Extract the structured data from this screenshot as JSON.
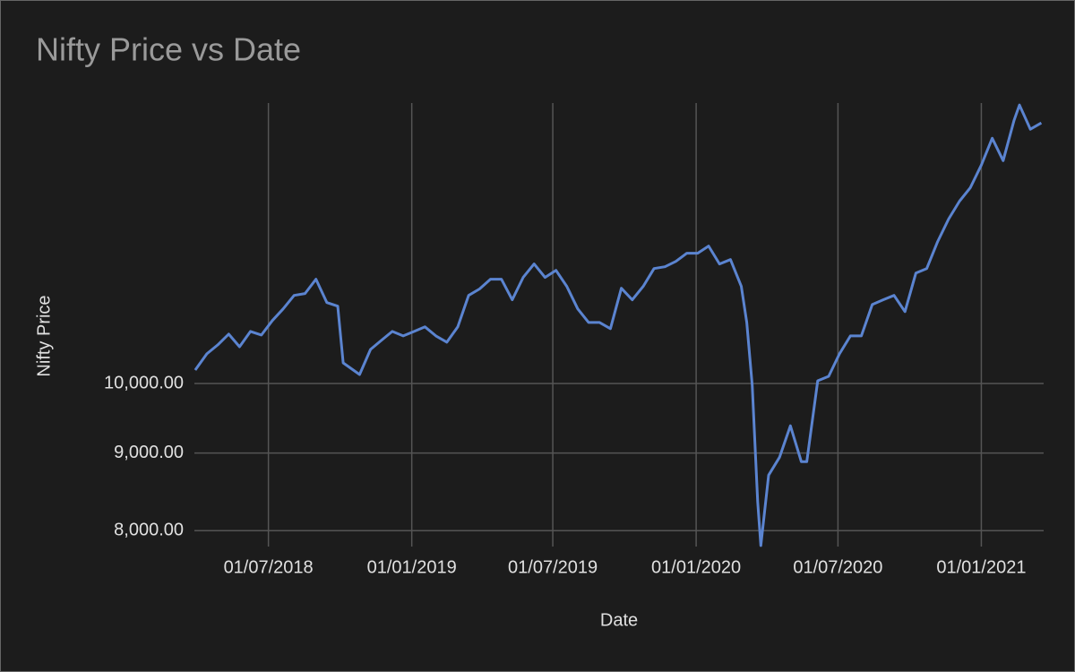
{
  "chart_data": {
    "type": "line",
    "title": "Nifty Price vs Date",
    "x_label": "Date",
    "y_label": "Nifty Price",
    "color": "#5b84d0",
    "log_y": true,
    "grid": true,
    "x": [
      "2018-03-29",
      "2018-04-13",
      "2018-04-27",
      "2018-05-11",
      "2018-05-25",
      "2018-06-08",
      "2018-06-22",
      "2018-07-06",
      "2018-07-20",
      "2018-08-03",
      "2018-08-17",
      "2018-08-31",
      "2018-09-14",
      "2018-09-28",
      "2018-10-05",
      "2018-10-26",
      "2018-11-09",
      "2018-11-23",
      "2018-12-07",
      "2018-12-21",
      "2019-01-04",
      "2019-01-18",
      "2019-02-01",
      "2019-02-15",
      "2019-03-01",
      "2019-03-15",
      "2019-03-29",
      "2019-04-12",
      "2019-04-26",
      "2019-05-10",
      "2019-05-24",
      "2019-06-07",
      "2019-06-21",
      "2019-07-05",
      "2019-07-19",
      "2019-08-02",
      "2019-08-16",
      "2019-08-30",
      "2019-09-13",
      "2019-09-27",
      "2019-10-11",
      "2019-10-25",
      "2019-11-08",
      "2019-11-22",
      "2019-12-06",
      "2019-12-20",
      "2020-01-03",
      "2020-01-17",
      "2020-01-31",
      "2020-02-14",
      "2020-02-28",
      "2020-03-06",
      "2020-03-13",
      "2020-03-20",
      "2020-03-24",
      "2020-04-03",
      "2020-04-17",
      "2020-05-01",
      "2020-05-15",
      "2020-05-22",
      "2020-06-05",
      "2020-06-19",
      "2020-07-03",
      "2020-07-17",
      "2020-07-31",
      "2020-08-14",
      "2020-08-28",
      "2020-09-11",
      "2020-09-25",
      "2020-10-09",
      "2020-10-23",
      "2020-11-06",
      "2020-11-20",
      "2020-12-04",
      "2020-12-18",
      "2021-01-01",
      "2021-01-15",
      "2021-01-29",
      "2021-02-12",
      "2021-02-19",
      "2021-03-05",
      "2021-03-19"
    ],
    "values": [
      10207,
      10460,
      10604,
      10778,
      10574,
      10822,
      10764,
      11001,
      11199,
      11430,
      11462,
      11714,
      11306,
      11245,
      10318,
      10137,
      10531,
      10676,
      10822,
      10749,
      10822,
      10897,
      10749,
      10647,
      10897,
      11430,
      11541,
      11714,
      11714,
      11353,
      11746,
      11988,
      11746,
      11873,
      11588,
      11199,
      10970,
      10970,
      10868,
      11554,
      11353,
      11588,
      11905,
      11937,
      12035,
      12184,
      12184,
      12317,
      11988,
      12068,
      11588,
      10970,
      9973,
      8355,
      7822,
      8703,
      8943,
      9380,
      8882,
      8882,
      10041,
      10110,
      10460,
      10749,
      10749,
      11272,
      11353,
      11430,
      11152,
      11825,
      11905,
      12402,
      12832,
      13186,
      13458,
      13925,
      14505,
      14021,
      14906,
      15255,
      14705,
      14846
    ],
    "xlim": [
      "2018-03-28",
      "2021-03-22"
    ],
    "xticks": [
      {
        "value": "2018-07-01",
        "label": "01/07/2018"
      },
      {
        "value": "2019-01-01",
        "label": "01/01/2019"
      },
      {
        "value": "2019-07-01",
        "label": "01/07/2019"
      },
      {
        "value": "2020-01-01",
        "label": "01/01/2020"
      },
      {
        "value": "2020-07-01",
        "label": "01/07/2020"
      },
      {
        "value": "2021-01-01",
        "label": "01/01/2021"
      }
    ],
    "ylim": [
      7810,
      15300
    ],
    "yticks": [
      {
        "value": 8000,
        "label": "8,000.00"
      },
      {
        "value": 9000,
        "label": "9,000.00"
      },
      {
        "value": 10000,
        "label": "10,000.00"
      }
    ]
  }
}
